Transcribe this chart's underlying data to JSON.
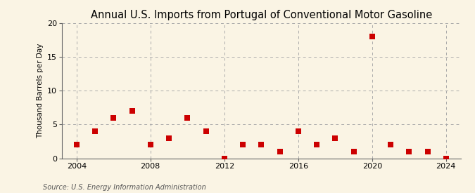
{
  "title": "Annual U.S. Imports from Portugal of Conventional Motor Gasoline",
  "ylabel": "Thousand Barrels per Day",
  "source": "Source: U.S. Energy Information Administration",
  "years": [
    2004,
    2005,
    2006,
    2007,
    2008,
    2009,
    2010,
    2011,
    2012,
    2013,
    2014,
    2015,
    2016,
    2017,
    2018,
    2019,
    2020,
    2021,
    2022,
    2023,
    2024
  ],
  "values": [
    2,
    4,
    6,
    7,
    2,
    3,
    6,
    4,
    0,
    2,
    2,
    1,
    4,
    2,
    3,
    1,
    18,
    2,
    1,
    1,
    0
  ],
  "marker_color": "#cc0000",
  "marker_size": 28,
  "bg_color": "#faf4e4",
  "grid_color": "#aaaaaa",
  "ylim": [
    0,
    20
  ],
  "yticks": [
    0,
    5,
    10,
    15,
    20
  ],
  "xlim": [
    2003.2,
    2024.8
  ],
  "xticks": [
    2004,
    2008,
    2012,
    2016,
    2020,
    2024
  ],
  "title_fontsize": 10.5,
  "ylabel_fontsize": 7.5,
  "tick_fontsize": 8,
  "source_fontsize": 7
}
